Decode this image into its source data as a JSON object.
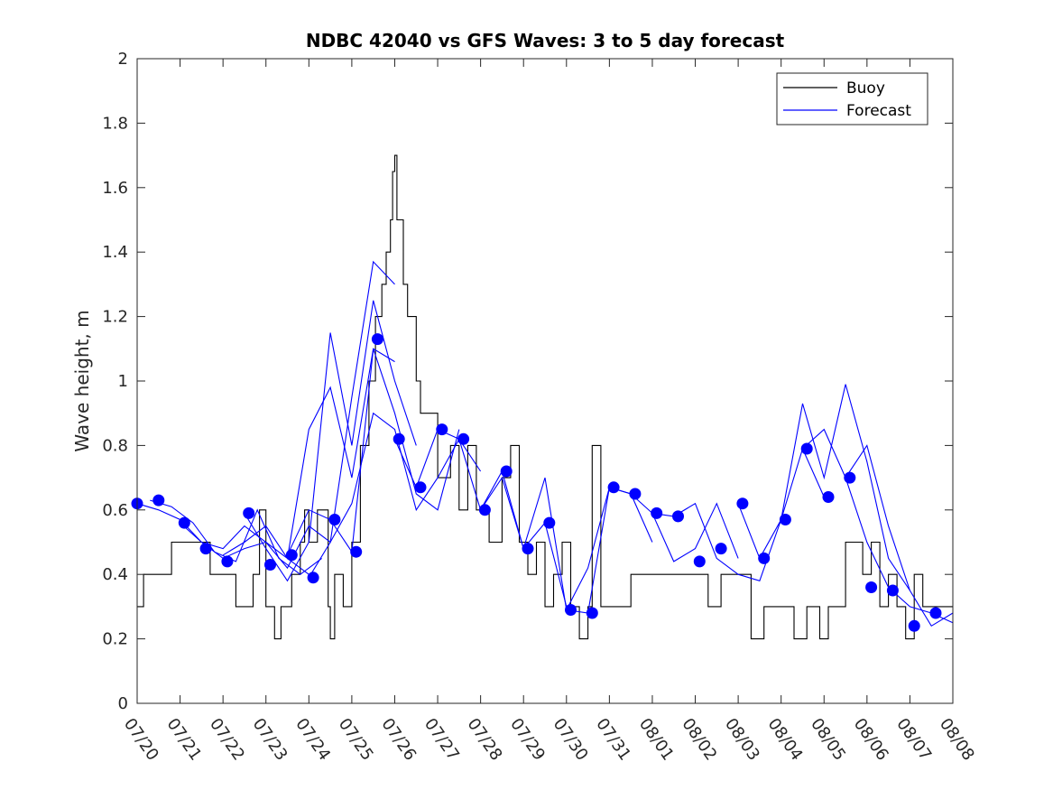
{
  "chart_data": {
    "type": "line",
    "title": "NDBC 42040 vs GFS Waves: 3 to 5 day forecast",
    "xlabel": "",
    "ylabel": "Wave height, m",
    "ylim": [
      0,
      2
    ],
    "yticks": [
      "0",
      "0.2",
      "0.4",
      "0.6",
      "0.8",
      "1",
      "1.2",
      "1.4",
      "1.6",
      "1.8",
      "2"
    ],
    "xlim": [
      "07/20",
      "08/08"
    ],
    "xticks": [
      "07/20",
      "07/21",
      "07/22",
      "07/23",
      "07/24",
      "07/25",
      "07/26",
      "07/27",
      "07/28",
      "07/29",
      "07/30",
      "07/31",
      "08/01",
      "08/02",
      "08/03",
      "08/04",
      "08/05",
      "08/06",
      "08/07",
      "08/08"
    ],
    "grid": false,
    "legend": {
      "position": "top-right",
      "entries": [
        "Buoy",
        "Forecast"
      ]
    },
    "colors": {
      "buoy": "#000000",
      "forecast": "#0000ff",
      "axes": "#262626"
    },
    "series": [
      {
        "name": "Buoy",
        "style": "step-line",
        "x_unit": "days after 07/20",
        "x": [
          0,
          0.15,
          0.5,
          0.8,
          0.9,
          1.2,
          1.7,
          2.3,
          2.7,
          2.85,
          3.0,
          3.2,
          3.35,
          3.45,
          3.6,
          3.8,
          3.9,
          4.0,
          4.2,
          4.45,
          4.5,
          4.6,
          4.8,
          5.0,
          5.2,
          5.4,
          5.55,
          5.7,
          5.8,
          5.9,
          5.95,
          6.0,
          6.05,
          6.2,
          6.3,
          6.5,
          6.6,
          7.0,
          7.3,
          7.5,
          7.7,
          7.9,
          8.2,
          8.5,
          8.7,
          8.9,
          9.1,
          9.3,
          9.5,
          9.7,
          9.9,
          10.1,
          10.3,
          10.5,
          10.6,
          10.8,
          11.0,
          11.5,
          12.0,
          12.5,
          13.0,
          13.3,
          13.6,
          14.0,
          14.3,
          14.6,
          15.0,
          15.3,
          15.6,
          15.9,
          16.1,
          16.3,
          16.5,
          16.7,
          16.9,
          17.1,
          17.3,
          17.5,
          17.7,
          17.9,
          18.1,
          18.3,
          18.6,
          19.0
        ],
        "values": [
          0.3,
          0.4,
          0.4,
          0.5,
          0.5,
          0.5,
          0.4,
          0.3,
          0.4,
          0.6,
          0.3,
          0.2,
          0.3,
          0.3,
          0.4,
          0.5,
          0.6,
          0.5,
          0.6,
          0.3,
          0.2,
          0.4,
          0.3,
          0.5,
          0.8,
          1.0,
          1.2,
          1.3,
          1.4,
          1.5,
          1.65,
          1.7,
          1.5,
          1.3,
          1.2,
          1.0,
          0.9,
          0.7,
          0.8,
          0.6,
          0.8,
          0.6,
          0.5,
          0.7,
          0.8,
          0.5,
          0.4,
          0.5,
          0.3,
          0.4,
          0.5,
          0.3,
          0.2,
          0.3,
          0.8,
          0.3,
          0.3,
          0.4,
          0.4,
          0.4,
          0.4,
          0.3,
          0.4,
          0.4,
          0.2,
          0.3,
          0.3,
          0.2,
          0.3,
          0.2,
          0.3,
          0.3,
          0.5,
          0.5,
          0.4,
          0.5,
          0.3,
          0.4,
          0.3,
          0.2,
          0.4,
          0.3,
          0.3,
          0.3
        ]
      },
      {
        "name": "Forecast",
        "style": "line",
        "x_unit": "days after 07/20",
        "runs": [
          {
            "x": [
              0,
              0.5,
              1.0,
              1.5,
              2.0,
              2.5,
              3.0,
              3.5,
              4.0
            ],
            "values": [
              0.62,
              0.6,
              0.57,
              0.5,
              0.45,
              0.48,
              0.5,
              0.45,
              0.4
            ]
          },
          {
            "x": [
              0.3,
              0.8,
              1.3,
              1.8,
              2.3,
              2.8,
              3.3,
              3.8,
              4.3
            ],
            "values": [
              0.63,
              0.61,
              0.56,
              0.47,
              0.44,
              0.6,
              0.45,
              0.4,
              0.45
            ]
          },
          {
            "x": [
              1.0,
              1.5,
              2.0,
              2.5,
              3.0,
              3.5,
              4.0,
              4.5,
              5.0,
              5.5,
              6.0
            ],
            "values": [
              0.56,
              0.5,
              0.48,
              0.55,
              0.5,
              0.42,
              0.55,
              0.5,
              0.95,
              1.37,
              1.3
            ]
          },
          {
            "x": [
              2.0,
              2.5,
              3.0,
              3.5,
              4.0,
              4.5,
              5.0,
              5.5,
              6.0
            ],
            "values": [
              0.46,
              0.5,
              0.55,
              0.45,
              0.85,
              0.98,
              0.7,
              1.1,
              1.06
            ]
          },
          {
            "x": [
              2.5,
              3.0,
              3.5,
              4.0,
              4.5,
              5.0,
              5.5,
              6.0,
              6.5
            ],
            "values": [
              0.59,
              0.48,
              0.38,
              0.5,
              1.15,
              0.8,
              1.25,
              1.0,
              0.8
            ]
          },
          {
            "x": [
              3.5,
              4.0,
              4.5,
              5.0,
              5.5,
              6.0,
              6.5,
              7.0,
              7.5
            ],
            "values": [
              0.46,
              0.6,
              0.57,
              0.47,
              1.1,
              0.9,
              0.65,
              0.6,
              0.85
            ]
          },
          {
            "x": [
              4.0,
              4.5,
              5.0,
              5.5,
              6.0,
              6.5,
              7.0,
              7.5,
              8.0
            ],
            "values": [
              0.39,
              0.5,
              0.62,
              0.9,
              0.85,
              0.6,
              0.7,
              0.82,
              0.72
            ]
          },
          {
            "x": [
              6.0,
              6.5,
              7.0,
              7.5,
              8.0,
              8.5,
              9.0,
              9.5,
              10.0
            ],
            "values": [
              0.82,
              0.67,
              0.85,
              0.82,
              0.6,
              0.72,
              0.48,
              0.56,
              0.3
            ]
          },
          {
            "x": [
              8.0,
              8.5,
              9.0,
              9.5,
              10.0,
              10.5,
              11.0,
              11.5,
              12.0
            ],
            "values": [
              0.6,
              0.7,
              0.48,
              0.7,
              0.29,
              0.28,
              0.67,
              0.65,
              0.5
            ]
          },
          {
            "x": [
              10.0,
              10.5,
              11.0,
              11.5,
              12.0,
              12.5,
              13.0,
              13.5,
              14.0
            ],
            "values": [
              0.29,
              0.42,
              0.67,
              0.65,
              0.59,
              0.44,
              0.48,
              0.62,
              0.45
            ]
          },
          {
            "x": [
              12.0,
              12.5,
              13.0,
              13.5,
              14.0,
              14.5,
              15.0,
              15.5,
              16.0
            ],
            "values": [
              0.59,
              0.58,
              0.62,
              0.45,
              0.4,
              0.38,
              0.57,
              0.79,
              0.64
            ]
          },
          {
            "x": [
              14.0,
              14.5,
              15.0,
              15.5,
              16.0,
              16.5,
              17.0,
              17.5,
              18.0
            ],
            "values": [
              0.62,
              0.45,
              0.57,
              0.93,
              0.7,
              0.99,
              0.75,
              0.45,
              0.35
            ]
          },
          {
            "x": [
              15.5,
              16.0,
              16.5,
              17.0,
              17.5,
              18.0,
              18.5,
              19.0
            ],
            "values": [
              0.79,
              0.85,
              0.7,
              0.5,
              0.36,
              0.3,
              0.28,
              0.25
            ]
          },
          {
            "x": [
              16.5,
              17.0,
              17.5,
              18.0,
              18.5,
              19.0
            ],
            "values": [
              0.7,
              0.8,
              0.55,
              0.35,
              0.24,
              0.28
            ]
          }
        ],
        "markers": {
          "x": [
            0,
            0.5,
            1.1,
            1.6,
            2.1,
            2.6,
            3.1,
            3.6,
            4.1,
            4.6,
            5.1,
            5.6,
            6.1,
            6.6,
            7.1,
            7.6,
            8.1,
            8.6,
            9.1,
            9.6,
            10.1,
            10.6,
            11.1,
            11.6,
            12.1,
            12.6,
            13.1,
            13.6,
            14.1,
            14.6,
            15.1,
            15.6,
            16.1,
            16.6,
            17.1,
            17.6,
            18.1,
            18.6
          ],
          "values": [
            0.62,
            0.63,
            0.56,
            0.48,
            0.44,
            0.59,
            0.43,
            0.46,
            0.39,
            0.57,
            0.47,
            1.13,
            0.82,
            0.67,
            0.85,
            0.82,
            0.6,
            0.72,
            0.48,
            0.56,
            0.29,
            0.28,
            0.67,
            0.65,
            0.59,
            0.58,
            0.44,
            0.48,
            0.62,
            0.45,
            0.57,
            0.79,
            0.64,
            0.7,
            0.36,
            0.35,
            0.24,
            0.28
          ]
        }
      }
    ]
  }
}
